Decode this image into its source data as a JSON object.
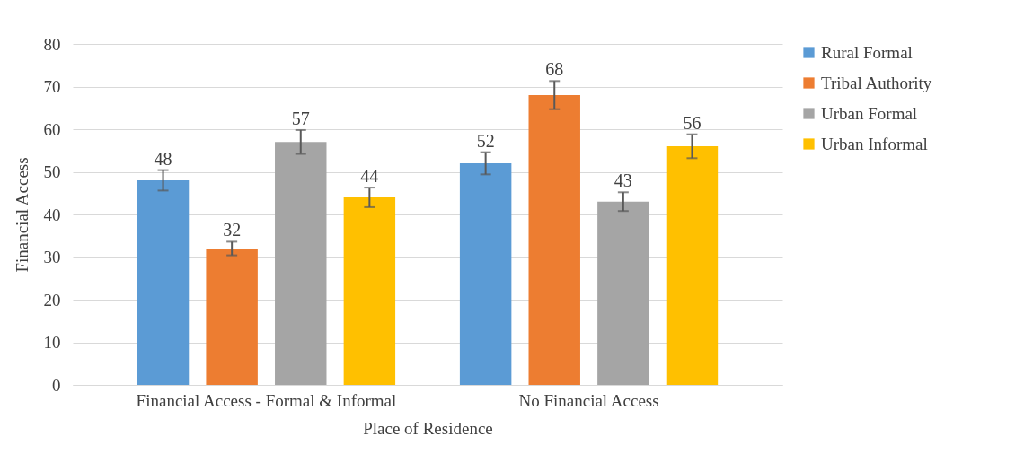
{
  "chart_data": {
    "type": "bar",
    "xlabel": "Place of Residence",
    "ylabel": "Financial Access",
    "categories": [
      "Financial Access - Formal & Informal",
      "No Financial Access"
    ],
    "series": [
      {
        "name": "Rural Formal",
        "color": "#5b9bd5",
        "values": [
          48,
          52
        ],
        "errors": [
          2.4,
          2.6
        ]
      },
      {
        "name": "Tribal Authority",
        "color": "#ed7d31",
        "values": [
          32,
          68
        ],
        "errors": [
          1.6,
          3.3
        ]
      },
      {
        "name": "Urban Formal",
        "color": "#a5a5a5",
        "values": [
          57,
          43
        ],
        "errors": [
          2.8,
          2.2
        ]
      },
      {
        "name": "Urban Informal",
        "color": "#ffc000",
        "values": [
          44,
          56
        ],
        "errors": [
          2.3,
          2.8
        ]
      }
    ],
    "ylim": [
      0,
      80
    ],
    "yticks": [
      0,
      10,
      20,
      30,
      40,
      50,
      60,
      70,
      80
    ],
    "grid": "y",
    "legend": "right",
    "data_labels": true
  }
}
